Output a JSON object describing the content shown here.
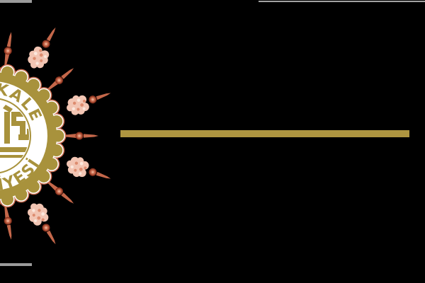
{
  "canvas": {
    "background": "#000000"
  },
  "logo": {
    "title": "Kırıkkale Belediyesi seal",
    "ring_text_top": "KIRIKKALE",
    "ring_text_bottom": "BELEDİYESİ",
    "visible_fragment_top": "KALE",
    "visible_fragment_bottom": "YESİ",
    "colors": {
      "gold": "#A8923C",
      "white": "#FFFFFF",
      "salmon": "#C96B4E",
      "shell_dark": "#8F3722",
      "shell_mid": "#C4674A",
      "shell_light": "#E9A78C",
      "flower_base": "#F2C5B3",
      "flower_dark": "#DD8C6F",
      "flower_light": "#FBE7DC"
    }
  },
  "divider": {
    "color": "#AE9540"
  },
  "fragments": {
    "top_left_bar_color": "#9B9B9B",
    "top_right_bar_color": "#A2A2A2",
    "bottom_left_bar_color": "#9B9B9B"
  }
}
